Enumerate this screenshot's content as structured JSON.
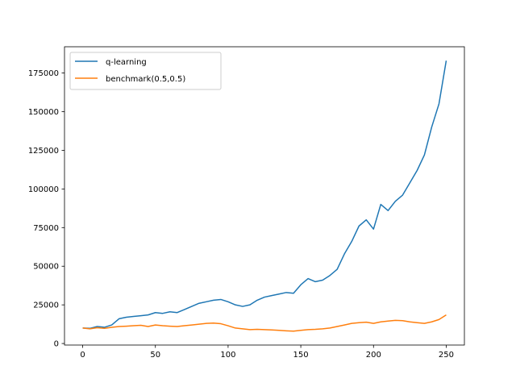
{
  "chart_data": {
    "type": "line",
    "title": "",
    "xlabel": "",
    "ylabel": "",
    "xlim": [
      -12.5,
      262.5
    ],
    "ylim": [
      -1000,
      192000
    ],
    "x_ticks": [
      {
        "value": 0,
        "label": "0"
      },
      {
        "value": 50,
        "label": "50"
      },
      {
        "value": 100,
        "label": "100"
      },
      {
        "value": 150,
        "label": "150"
      },
      {
        "value": 200,
        "label": "200"
      },
      {
        "value": 250,
        "label": "250"
      }
    ],
    "y_ticks": [
      {
        "value": 0,
        "label": "0"
      },
      {
        "value": 25000,
        "label": "25000"
      },
      {
        "value": 50000,
        "label": "50000"
      },
      {
        "value": 75000,
        "label": "75000"
      },
      {
        "value": 100000,
        "label": "100000"
      },
      {
        "value": 125000,
        "label": "125000"
      },
      {
        "value": 150000,
        "label": "150000"
      },
      {
        "value": 175000,
        "label": "175000"
      }
    ],
    "grid": false,
    "legend_position": "top-left",
    "series": [
      {
        "name": "q-learning",
        "color": "#1f77b4",
        "x": [
          0,
          5,
          10,
          15,
          20,
          25,
          30,
          35,
          40,
          45,
          50,
          55,
          60,
          65,
          70,
          75,
          80,
          85,
          90,
          95,
          100,
          105,
          110,
          115,
          120,
          125,
          130,
          135,
          140,
          145,
          150,
          155,
          160,
          165,
          170,
          175,
          180,
          185,
          190,
          195,
          200,
          205,
          210,
          215,
          220,
          225,
          230,
          235,
          240,
          245,
          250
        ],
        "y": [
          10000,
          9800,
          11000,
          10500,
          12000,
          16000,
          17000,
          17500,
          18000,
          18500,
          20000,
          19500,
          20500,
          20000,
          22000,
          24000,
          26000,
          27000,
          28000,
          28500,
          27000,
          25000,
          24000,
          25000,
          28000,
          30000,
          31000,
          32000,
          33000,
          32500,
          38000,
          42000,
          40000,
          41000,
          44000,
          48000,
          58000,
          66000,
          76000,
          80000,
          74000,
          90000,
          86000,
          92000,
          96000,
          104000,
          112000,
          122000,
          140000,
          155000,
          183000
        ]
      },
      {
        "name": "benchmark(0.5,0.5)",
        "color": "#ff7f0e",
        "x": [
          0,
          5,
          10,
          15,
          20,
          25,
          30,
          35,
          40,
          45,
          50,
          55,
          60,
          65,
          70,
          75,
          80,
          85,
          90,
          95,
          100,
          105,
          110,
          115,
          120,
          125,
          130,
          135,
          140,
          145,
          150,
          155,
          160,
          165,
          170,
          175,
          180,
          185,
          190,
          195,
          200,
          205,
          210,
          215,
          220,
          225,
          230,
          235,
          240,
          245,
          250
        ],
        "y": [
          10000,
          9500,
          10200,
          9800,
          10500,
          11000,
          11200,
          11500,
          11800,
          11000,
          12000,
          11500,
          11200,
          11000,
          11500,
          12000,
          12500,
          13000,
          13200,
          12800,
          11500,
          10000,
          9500,
          9000,
          9200,
          9000,
          8800,
          8500,
          8200,
          8000,
          8500,
          9000,
          9200,
          9500,
          10000,
          11000,
          12000,
          13000,
          13500,
          13800,
          13000,
          14000,
          14500,
          15000,
          14800,
          14000,
          13500,
          13000,
          14000,
          15500,
          18500
        ]
      }
    ]
  }
}
